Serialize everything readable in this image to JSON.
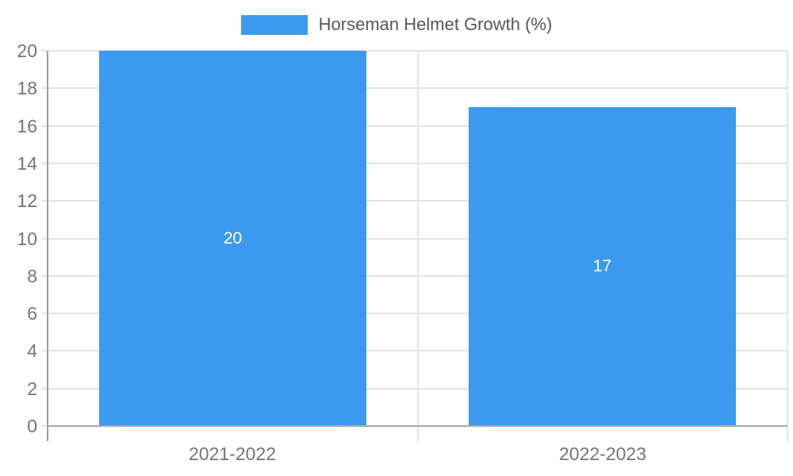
{
  "chart_data": {
    "type": "bar",
    "title": "",
    "legend": {
      "label": "Horseman Helmet Growth (%)",
      "position": "top-center"
    },
    "categories": [
      "2021-2022",
      "2022-2023"
    ],
    "series": [
      {
        "name": "Horseman Helmet Growth (%)",
        "values": [
          20,
          17
        ]
      }
    ],
    "value_labels": [
      "20",
      "17"
    ],
    "xlabel": "",
    "ylabel": "",
    "ylim": [
      0,
      20
    ],
    "y_ticks": [
      0,
      2,
      4,
      6,
      8,
      10,
      12,
      14,
      16,
      18,
      20
    ],
    "grid": true,
    "colors": {
      "bar": "#3C99F0",
      "grid": "#e3e3e3",
      "axis": "#a9a9a9",
      "axis_left": "#9e9e9e",
      "tick_label": "#757575",
      "legend_text": "#555759",
      "value_label": "#ffffff",
      "background": "#ffffff"
    }
  }
}
